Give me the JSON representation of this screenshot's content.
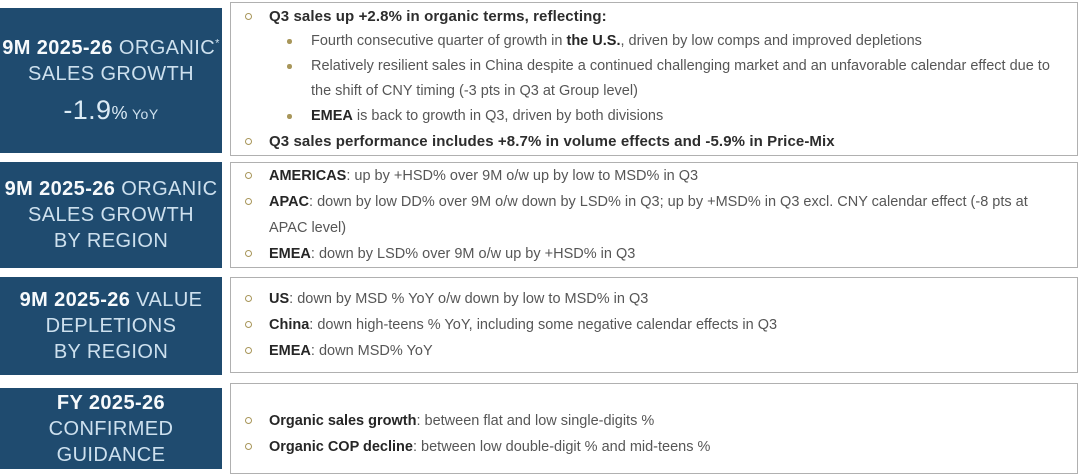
{
  "colors": {
    "navy": "#1f4b6f",
    "gold": "#a8965a",
    "body_text": "#565656",
    "bold_text": "#262626",
    "label_light_text": "#cde0ee",
    "label_bold_text": "#ffffff",
    "panel_border": "#b0b0b0"
  },
  "rows": [
    {
      "id": "organic-sales-growth",
      "label": {
        "lines": [
          {
            "segments": [
              {
                "text": "9M 2025-26",
                "bold": true
              },
              {
                "text": " ORGANIC"
              },
              {
                "text": "*",
                "sup": true
              }
            ]
          },
          {
            "segments": [
              {
                "text": "SALES GROWTH"
              }
            ]
          },
          {
            "metric": true,
            "segments": [
              {
                "text": "-1.9",
                "metric": true
              },
              {
                "text": "%",
                "pct": true
              },
              {
                "text": " YoY",
                "unit": true
              }
            ]
          }
        ]
      },
      "bullets": [
        {
          "level": 1,
          "strong": true,
          "segments": [
            {
              "text": "Q3 sales up +2.8% in organic terms, reflecting:"
            }
          ]
        },
        {
          "level": 2,
          "segments": [
            {
              "text": "Fourth consecutive quarter of growth in "
            },
            {
              "text": "the U.S.",
              "bold": true
            },
            {
              "text": ", driven by low comps and improved depletions"
            }
          ]
        },
        {
          "level": 2,
          "segments": [
            {
              "text": "Relatively resilient sales in China despite a continued challenging market and an unfavorable calendar effect due to the shift of CNY timing (-3 pts in Q3 at Group level)"
            }
          ]
        },
        {
          "level": 2,
          "segments": [
            {
              "text": "EMEA",
              "bold": true
            },
            {
              "text": " is back to growth in Q3, driven by both divisions"
            }
          ]
        },
        {
          "level": 1,
          "strong": true,
          "segments": [
            {
              "text": "Q3 sales performance includes +8.7% in volume effects and -5.9% in Price-Mix"
            }
          ]
        }
      ]
    },
    {
      "id": "organic-sales-growth-by-region",
      "label": {
        "lines": [
          {
            "segments": [
              {
                "text": "9M 2025-26",
                "bold": true
              },
              {
                "text": " ORGANIC"
              }
            ]
          },
          {
            "segments": [
              {
                "text": "SALES GROWTH"
              }
            ]
          },
          {
            "segments": [
              {
                "text": "BY REGION"
              }
            ]
          }
        ]
      },
      "bullets": [
        {
          "level": 1,
          "segments": [
            {
              "text": "AMERICAS",
              "bold": true
            },
            {
              "text": ": up by +HSD% over 9M o/w up by low to MSD% in Q3"
            }
          ]
        },
        {
          "level": 1,
          "segments": [
            {
              "text": "APAC",
              "bold": true
            },
            {
              "text": ": down by low DD% over 9M o/w down by LSD% in Q3; up by +MSD% in Q3 excl. CNY calendar effect (-8 pts at APAC level)"
            }
          ]
        },
        {
          "level": 1,
          "segments": [
            {
              "text": "EMEA",
              "bold": true
            },
            {
              "text": ": down by LSD% over 9M o/w up by +HSD% in Q3"
            }
          ]
        }
      ]
    },
    {
      "id": "value-depletions-by-region",
      "label": {
        "lines": [
          {
            "segments": [
              {
                "text": "9M 2025-26",
                "bold": true
              },
              {
                "text": " VALUE"
              }
            ]
          },
          {
            "segments": [
              {
                "text": "DEPLETIONS"
              }
            ]
          },
          {
            "segments": [
              {
                "text": "BY REGION"
              }
            ]
          }
        ]
      },
      "bullets": [
        {
          "level": 1,
          "segments": [
            {
              "text": "US",
              "bold": true
            },
            {
              "text": ": down by MSD % YoY o/w down by low to MSD% in Q3"
            }
          ]
        },
        {
          "level": 1,
          "segments": [
            {
              "text": "China",
              "bold": true
            },
            {
              "text": ": down high-teens % YoY, including some negative calendar effects in Q3"
            }
          ]
        },
        {
          "level": 1,
          "segments": [
            {
              "text": "EMEA",
              "bold": true
            },
            {
              "text": ": down MSD% YoY"
            }
          ]
        }
      ]
    },
    {
      "id": "confirmed-guidance",
      "label": {
        "lines": [
          {
            "segments": [
              {
                "text": "FY 2025-26",
                "bold": true
              }
            ]
          },
          {
            "segments": [
              {
                "text": "CONFIRMED"
              }
            ]
          },
          {
            "segments": [
              {
                "text": "GUIDANCE"
              }
            ]
          }
        ]
      },
      "bullets": [
        {
          "level": 1,
          "segments": [
            {
              "text": "Organic sales growth",
              "bold": true
            },
            {
              "text": ": between flat and low single-digits %"
            }
          ]
        },
        {
          "level": 1,
          "segments": [
            {
              "text": "Organic COP decline",
              "bold": true
            },
            {
              "text": ": between low double-digit % and mid-teens %"
            }
          ]
        }
      ]
    }
  ]
}
